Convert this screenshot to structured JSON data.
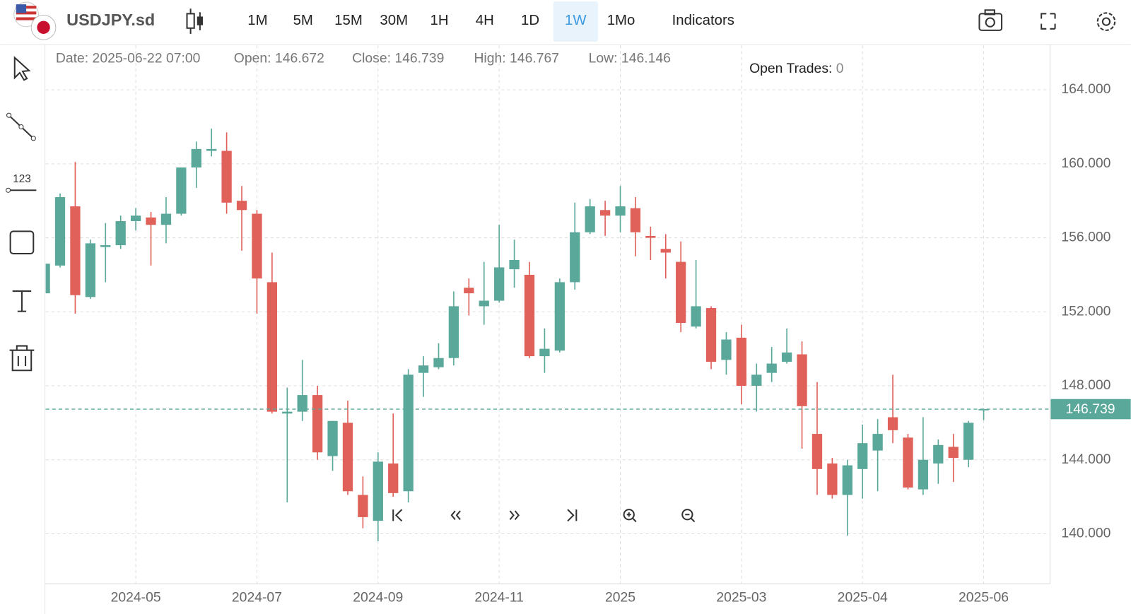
{
  "toolbar": {
    "symbol": "USDJPY.sd",
    "timeframes": [
      "1M",
      "5M",
      "15M",
      "30M",
      "1H",
      "4H",
      "1D",
      "1W",
      "1Mo"
    ],
    "active_timeframe": 7,
    "indicators": "Indicators"
  },
  "info": {
    "date_label": "Date:",
    "date": "2025-06-22 07:00",
    "open_label": "Open:",
    "close_label": "Close:",
    "high_label": "High:",
    "low_label": "Low:",
    "open_trades_label": "Open Trades:",
    "open_trades": "0"
  },
  "chart_data": {
    "type": "candlestick",
    "categories": [
      null,
      null,
      null,
      null,
      null,
      null,
      "2024-05",
      null,
      null,
      null,
      null,
      null,
      null,
      null,
      "2024-07",
      null,
      null,
      null,
      null,
      null,
      null,
      null,
      "2024-09",
      null,
      null,
      null,
      null,
      null,
      null,
      null,
      "2024-11",
      null,
      null,
      null,
      null,
      null,
      null,
      null,
      "2025",
      null,
      null,
      null,
      null,
      null,
      null,
      null,
      "2025-03",
      null,
      null,
      null,
      null,
      null,
      null,
      null,
      "2025-04",
      null,
      null,
      null,
      null,
      null,
      null,
      null,
      "2025-06"
    ],
    "open": [
      153.0,
      154.5,
      157.7,
      152.8,
      155.5,
      155.6,
      156.9,
      157.1,
      156.7,
      157.3,
      159.8,
      160.7,
      160.7,
      158.0,
      157.3,
      153.6,
      146.5,
      146.6,
      147.5,
      144.2,
      146.0,
      142.1,
      140.7,
      143.8,
      142.3,
      148.7,
      149.0,
      149.5,
      153.3,
      152.3,
      152.6,
      154.3,
      154.0,
      149.6,
      149.9,
      153.6,
      156.3,
      157.5,
      157.2,
      157.6,
      156.1,
      155.4,
      154.7,
      151.2,
      152.2,
      149.4,
      150.6,
      148.0,
      148.7,
      149.3,
      149.7,
      145.4,
      143.8,
      142.1,
      143.5,
      144.5,
      146.3,
      145.2,
      142.4,
      143.8,
      144.7,
      144.0,
      146.672
    ],
    "high": [
      154.6,
      158.4,
      160.1,
      155.9,
      156.8,
      157.2,
      157.6,
      157.4,
      158.2,
      159.8,
      161.2,
      161.9,
      161.7,
      158.8,
      157.5,
      155.2,
      147.9,
      149.4,
      148.0,
      146.1,
      147.2,
      143.1,
      144.4,
      146.5,
      148.9,
      149.6,
      150.3,
      153.1,
      153.8,
      154.7,
      156.7,
      155.9,
      154.7,
      151.1,
      153.8,
      157.9,
      158.1,
      158.0,
      158.8,
      158.2,
      156.6,
      156.2,
      155.8,
      154.8,
      152.3,
      150.9,
      151.3,
      149.2,
      150.1,
      151.1,
      150.4,
      148.2,
      144.1,
      144.0,
      145.9,
      146.2,
      148.6,
      145.4,
      146.3,
      145.1,
      145.4,
      146.1,
      146.767
    ],
    "low": [
      152.9,
      154.4,
      151.9,
      152.7,
      153.6,
      155.4,
      156.4,
      154.5,
      155.7,
      157.2,
      158.7,
      160.4,
      157.3,
      155.3,
      151.9,
      146.5,
      141.7,
      146.1,
      144.0,
      143.4,
      142.1,
      140.3,
      139.6,
      142.0,
      141.7,
      147.4,
      148.9,
      149.1,
      151.8,
      151.3,
      152.5,
      153.3,
      149.5,
      148.7,
      149.8,
      153.2,
      156.2,
      156.1,
      156.3,
      155.0,
      154.8,
      153.8,
      150.9,
      151.1,
      148.9,
      148.6,
      147.0,
      146.6,
      148.2,
      149.2,
      144.6,
      142.1,
      141.9,
      139.9,
      141.9,
      142.3,
      144.9,
      142.4,
      142.1,
      142.7,
      142.8,
      143.6,
      146.146
    ],
    "close": [
      154.6,
      158.2,
      152.9,
      155.7,
      155.6,
      156.9,
      157.2,
      156.7,
      157.3,
      159.8,
      160.8,
      160.8,
      157.9,
      157.5,
      153.8,
      146.6,
      146.6,
      147.5,
      144.4,
      146.1,
      142.3,
      140.9,
      143.9,
      142.2,
      148.6,
      149.1,
      149.5,
      152.3,
      153.0,
      152.6,
      154.4,
      154.8,
      149.6,
      150.0,
      153.6,
      156.3,
      157.7,
      157.2,
      157.7,
      156.3,
      156.0,
      155.2,
      151.4,
      152.3,
      149.3,
      150.5,
      148.0,
      148.6,
      149.2,
      149.8,
      146.9,
      143.5,
      142.1,
      143.7,
      144.9,
      145.4,
      145.6,
      142.5,
      144.0,
      144.8,
      144.1,
      146.0,
      146.739
    ],
    "up_color": "#5aa89a",
    "down_color": "#e0605a",
    "ylim": [
      137.3,
      166.4
    ],
    "yticks": [
      {
        "value": 140,
        "label": "140.000"
      },
      {
        "value": 144,
        "label": "144.000"
      },
      {
        "value": 148,
        "label": "148.000"
      },
      {
        "value": 152,
        "label": "152.000"
      },
      {
        "value": 156,
        "label": "156.000"
      },
      {
        "value": 160,
        "label": "160.000"
      },
      {
        "value": 164,
        "label": "164.000"
      }
    ],
    "grid": true
  }
}
